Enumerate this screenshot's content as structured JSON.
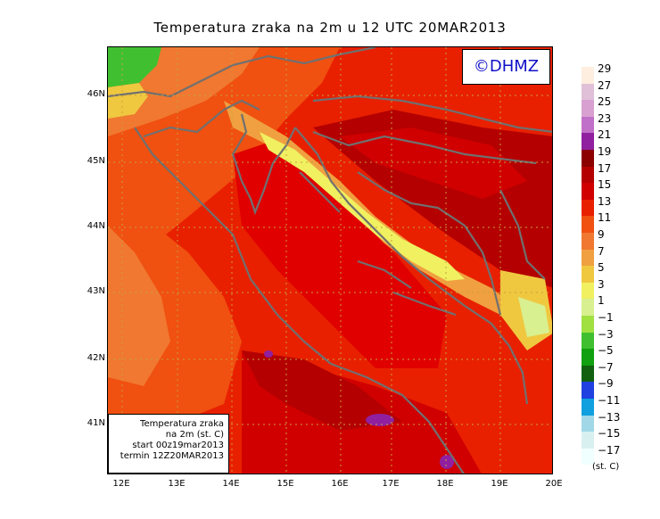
{
  "title": "Temperatura zraka na 2m u 12 UTC 20MAR2013",
  "copyright": "©DHMZ",
  "info_box": {
    "line1": "Temperatura zraka",
    "line2": "na 2m (st. C)",
    "line3": "start 00z19mar2013",
    "line4": "termin 12Z20MAR2013"
  },
  "axes": {
    "lat_labels": [
      "46N",
      "45N",
      "44N",
      "43N",
      "42N",
      "41N"
    ],
    "lon_labels": [
      "12E",
      "13E",
      "14E",
      "15E",
      "16E",
      "17E",
      "18E",
      "19E",
      "20E"
    ]
  },
  "legend": {
    "unit": "(st. C)",
    "labels": [
      "29",
      "27",
      "25",
      "23",
      "21",
      "19",
      "17",
      "15",
      "13",
      "11",
      "9",
      "7",
      "5",
      "3",
      "1",
      "−1",
      "−3",
      "−5",
      "−7",
      "−9",
      "−11",
      "−13",
      "−15",
      "−17"
    ],
    "colors": [
      "#fdeee0",
      "#e0c0d8",
      "#d8a0d0",
      "#c070c8",
      "#9020a0",
      "#8c0000",
      "#b40000",
      "#d00000",
      "#e82000",
      "#f05010",
      "#f07830",
      "#f0a040",
      "#f0c840",
      "#f0f060",
      "#d8f090",
      "#a0e040",
      "#40c030",
      "#10a010",
      "#106010",
      "#2040e0",
      "#10a0e0",
      "#a0d8e8",
      "#d8f0f0",
      "#f0ffff"
    ]
  },
  "colors": {
    "sea": "#e00000",
    "coast": "#707070",
    "title_text": "#000000",
    "copyright_text": "#1010c8"
  }
}
